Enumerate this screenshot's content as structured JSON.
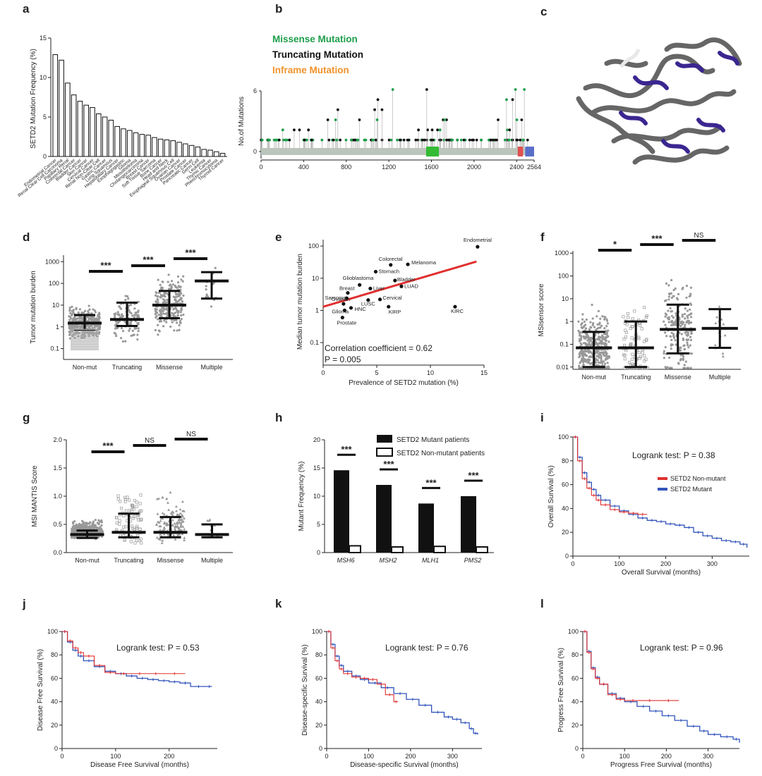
{
  "chart_data": [
    {
      "panel": "a",
      "type": "bar",
      "ylabel": "SETD2 Mutation Frequency (%)",
      "ylim": [
        0,
        15
      ],
      "yticks": [
        0,
        5,
        10,
        15
      ],
      "categories": [
        "Endometrial Cancer",
        "Renal Clear Cell Carcinoma",
        "Papillary Renal",
        "Colorectal Cancer",
        "Bladder Cancer",
        "Skin Cancer",
        "Cervical Cancer",
        "Renal Non-Clear Cell",
        "Gastric Cancer",
        "Lung Squamous",
        "Hepatobiliary Cancer",
        "Esophagogastric",
        "Glioma",
        "Mesothelioma",
        "Cholangiocarcinoma",
        "Breast Cancer",
        "Soft Tissue Sarcoma",
        "Bone Cancer",
        "Head and Neck",
        "Esophageal Squamous Cell",
        "Ovarian Cancer",
        "Prostate Cancer",
        "Pancreatic Cancer",
        "Germ Cell",
        "Leukemia",
        "Thymic Cancer",
        "Pheochromocytoma",
        "Thyroid Cancer"
      ],
      "values": [
        12.9,
        12.2,
        9.3,
        7.8,
        7.0,
        6.5,
        6.2,
        5.4,
        5.0,
        4.6,
        3.8,
        3.5,
        3.3,
        3.0,
        2.8,
        2.7,
        2.4,
        2.2,
        2.1,
        2.0,
        1.8,
        1.6,
        1.4,
        1.2,
        0.9,
        0.8,
        0.6,
        0.4
      ]
    },
    {
      "panel": "b",
      "type": "lollipop",
      "legend": [
        "Missense Mutation",
        "Truncating Mutation",
        "Inframe Mutation"
      ],
      "ylabel": "No.of Mutations",
      "ymax": 6,
      "xticks": [
        "0",
        "400",
        "800",
        "1200",
        "1600",
        "2000",
        "2400",
        "2564"
      ],
      "protein_length": 2564
    },
    {
      "panel": "c",
      "type": "image",
      "description_visible": ""
    },
    {
      "panel": "d",
      "type": "scatter",
      "ylabel": "Tumor mutation burden",
      "categories": [
        "Non-mut",
        "Truncating",
        "Missense",
        "Multiple"
      ],
      "yticks": [
        "0.1",
        "1",
        "10",
        "100",
        "1000"
      ],
      "median": [
        1.5,
        2.2,
        10,
        130
      ],
      "q1": [
        0.7,
        1.1,
        2.5,
        20
      ],
      "q3": [
        3.5,
        13,
        45,
        330
      ],
      "significance": [
        "***",
        "***",
        "***"
      ]
    },
    {
      "panel": "e",
      "type": "scatter",
      "xlabel": "Prevalence of SETD2 mutation (%)",
      "ylabel": "Median tumor mutation burden",
      "xticks": [
        "0",
        "5",
        "10",
        "15"
      ],
      "yticks": [
        "0.1",
        "1",
        "10",
        "100"
      ],
      "points": [
        {
          "label": "Endometrial",
          "x": 14.4,
          "y": 95
        },
        {
          "label": "Colorectal",
          "x": 6.3,
          "y": 26
        },
        {
          "label": "Melanoma",
          "x": 7.9,
          "y": 27
        },
        {
          "label": "Stomach",
          "x": 4.9,
          "y": 16
        },
        {
          "label": "Bladder",
          "x": 6.7,
          "y": 8.5
        },
        {
          "label": "Glioblastoma",
          "x": 3.4,
          "y": 6.2
        },
        {
          "label": "LUAD",
          "x": 7.3,
          "y": 5.6
        },
        {
          "label": "Breast",
          "x": 2.3,
          "y": 3.5
        },
        {
          "label": "Liver",
          "x": 4.4,
          "y": 4.8
        },
        {
          "label": "Sarcoma",
          "x": 2.2,
          "y": 2.4
        },
        {
          "label": "Cervical",
          "x": 5.3,
          "y": 2.2
        },
        {
          "label": "LUSC",
          "x": 4.2,
          "y": 2.1
        },
        {
          "label": "Ovarian",
          "x": 1.9,
          "y": 1.6
        },
        {
          "label": "HNC",
          "x": 2.6,
          "y": 1.2
        },
        {
          "label": "KIRP",
          "x": 6.1,
          "y": 1.3
        },
        {
          "label": "Glioma",
          "x": 2.0,
          "y": 1.0
        },
        {
          "label": "KIRC",
          "x": 12.3,
          "y": 1.3
        },
        {
          "label": "Prostate",
          "x": 1.8,
          "y": 0.6
        }
      ],
      "annotation_corr": "Correlation coefficient = 0.62",
      "annotation_p": "P = 0.005"
    },
    {
      "panel": "f",
      "type": "scatter",
      "ylabel": "MSIsensor score",
      "categories": [
        "Non-mut",
        "Truncating",
        "Missense",
        "Multiple"
      ],
      "yticks": [
        "0.01",
        "0.1",
        "1",
        "10",
        "100",
        "1000"
      ],
      "median": [
        0.07,
        0.07,
        0.45,
        0.5
      ],
      "q1": [
        0.01,
        0.01,
        0.04,
        0.07
      ],
      "q3": [
        0.35,
        1.0,
        5.5,
        3.5
      ],
      "significance": [
        "*",
        "***",
        "NS"
      ]
    },
    {
      "panel": "g",
      "type": "scatter",
      "ylabel": "MSI MANTIS Score",
      "categories": [
        "Non-mut",
        "Truncating",
        "Missense",
        "Multiple"
      ],
      "yticks": [
        "0.0",
        "0.5",
        "1.0",
        "1.5",
        "2.0"
      ],
      "median": [
        0.32,
        0.36,
        0.36,
        0.32
      ],
      "q1": [
        0.26,
        0.27,
        0.27,
        0.27
      ],
      "q3": [
        0.39,
        0.69,
        0.63,
        0.5
      ],
      "significance": [
        "***",
        "NS",
        "NS"
      ]
    },
    {
      "panel": "h",
      "type": "bar",
      "ylabel": "Mutant Frequency (%)",
      "categories": [
        "MSH6",
        "MSH2",
        "MLH1",
        "PMS2"
      ],
      "yticks": [
        "0",
        "5",
        "10",
        "15",
        "20"
      ],
      "series": [
        {
          "name": "SETD2 Mutant patients",
          "values": [
            14.6,
            12.0,
            8.7,
            10.0
          ]
        },
        {
          "name": "SETD2 Non-mutant patients",
          "values": [
            1.2,
            1.0,
            1.1,
            1.0
          ]
        }
      ],
      "significance": [
        "***",
        "***",
        "***",
        "***"
      ]
    },
    {
      "panel": "i",
      "type": "line",
      "xlabel": "Overall Survival (months)",
      "ylabel": "Overall Survival (%)",
      "xticks": [
        "0",
        "100",
        "200",
        "300"
      ],
      "yticks": [
        "0",
        "20",
        "40",
        "60",
        "80",
        "100"
      ],
      "annotation": "Logrank test: P = 0.38",
      "legend": [
        "SETD2 Non-mutant",
        "SETD2 Mutant"
      ],
      "series": [
        {
          "name": "SETD2 Non-mutant",
          "x": [
            0,
            10,
            20,
            30,
            40,
            50,
            60,
            80,
            100,
            120,
            140,
            160
          ],
          "y": [
            100,
            80,
            65,
            57,
            51,
            47,
            43,
            39,
            37,
            36,
            35,
            35
          ]
        },
        {
          "name": "SETD2 Mutant",
          "x": [
            0,
            10,
            20,
            30,
            40,
            50,
            60,
            80,
            100,
            120,
            140,
            160,
            180,
            200,
            220,
            240,
            260,
            280,
            300,
            320,
            340,
            360,
            375
          ],
          "y": [
            100,
            83,
            70,
            62,
            56,
            51,
            47,
            42,
            38,
            35,
            32,
            30,
            29,
            27,
            26,
            24,
            20,
            17,
            15,
            13,
            12,
            10,
            7
          ]
        }
      ]
    },
    {
      "panel": "j",
      "type": "line",
      "xlabel": "Disease Free Survival (months)",
      "ylabel": "Disease Free Survival (%)",
      "xticks": [
        "0",
        "100",
        "200"
      ],
      "yticks": [
        "0",
        "20",
        "40",
        "60",
        "80",
        "100"
      ],
      "annotation": "Logrank test: P = 0.53",
      "series": [
        {
          "name": "SETD2 Non-mutant",
          "x": [
            0,
            10,
            20,
            30,
            40,
            60,
            80,
            100,
            130,
            160,
            190,
            230
          ],
          "y": [
            100,
            92,
            86,
            82,
            79,
            71,
            65,
            64,
            64,
            64,
            64,
            64
          ]
        },
        {
          "name": "SETD2 Mutant",
          "x": [
            0,
            10,
            20,
            30,
            40,
            60,
            80,
            100,
            120,
            140,
            160,
            180,
            200,
            220,
            240,
            270,
            280
          ],
          "y": [
            100,
            91,
            84,
            79,
            75,
            70,
            66,
            64,
            62,
            60,
            59,
            58,
            57,
            56,
            53,
            53,
            53
          ]
        }
      ]
    },
    {
      "panel": "k",
      "type": "line",
      "xlabel": "Disease-specific Survival (months)",
      "ylabel": "Disease-specific Survival (%)",
      "xticks": [
        "0",
        "100",
        "200",
        "300"
      ],
      "yticks": [
        "0",
        "20",
        "40",
        "60",
        "80",
        "100"
      ],
      "annotation": "Logrank test: P = 0.76",
      "series": [
        {
          "name": "SETD2 Non-mutant",
          "x": [
            0,
            10,
            20,
            30,
            40,
            60,
            80,
            100,
            120,
            140,
            160,
            170
          ],
          "y": [
            100,
            86,
            75,
            68,
            64,
            61,
            60,
            59,
            55,
            46,
            40,
            40
          ]
        },
        {
          "name": "SETD2 Mutant",
          "x": [
            0,
            10,
            20,
            30,
            40,
            60,
            80,
            100,
            130,
            160,
            190,
            220,
            250,
            280,
            300,
            320,
            340,
            350,
            360
          ],
          "y": [
            100,
            89,
            79,
            71,
            66,
            62,
            59,
            56,
            52,
            47,
            42,
            37,
            31,
            27,
            25,
            22,
            17,
            13,
            12
          ]
        }
      ]
    },
    {
      "panel": "l",
      "type": "line",
      "xlabel": "Progress Free Survival (months)",
      "ylabel": "Progress Free Survival (%)",
      "xticks": [
        "0",
        "100",
        "200",
        "300"
      ],
      "yticks": [
        "0",
        "20",
        "40",
        "60",
        "80",
        "100"
      ],
      "annotation": "Logrank test: P = 0.96",
      "series": [
        {
          "name": "SETD2 Non-mutant",
          "x": [
            0,
            10,
            20,
            30,
            40,
            60,
            80,
            100,
            140,
            180,
            230
          ],
          "y": [
            100,
            82,
            68,
            60,
            55,
            46,
            42,
            41,
            41,
            41,
            41
          ]
        },
        {
          "name": "SETD2 Mutant",
          "x": [
            0,
            10,
            20,
            30,
            40,
            60,
            80,
            100,
            130,
            160,
            190,
            220,
            250,
            280,
            300,
            330,
            360,
            375
          ],
          "y": [
            100,
            83,
            69,
            61,
            55,
            47,
            43,
            40,
            36,
            32,
            28,
            24,
            19,
            15,
            12,
            10,
            8,
            5
          ]
        }
      ]
    }
  ],
  "colors": {
    "missense": "#1e9e4a",
    "truncating": "#111111",
    "inframe": "#f0932b",
    "mutant": "#3355bb",
    "nonmutant": "#e03030",
    "trend": "#e03030",
    "protein": "#3b2690"
  }
}
